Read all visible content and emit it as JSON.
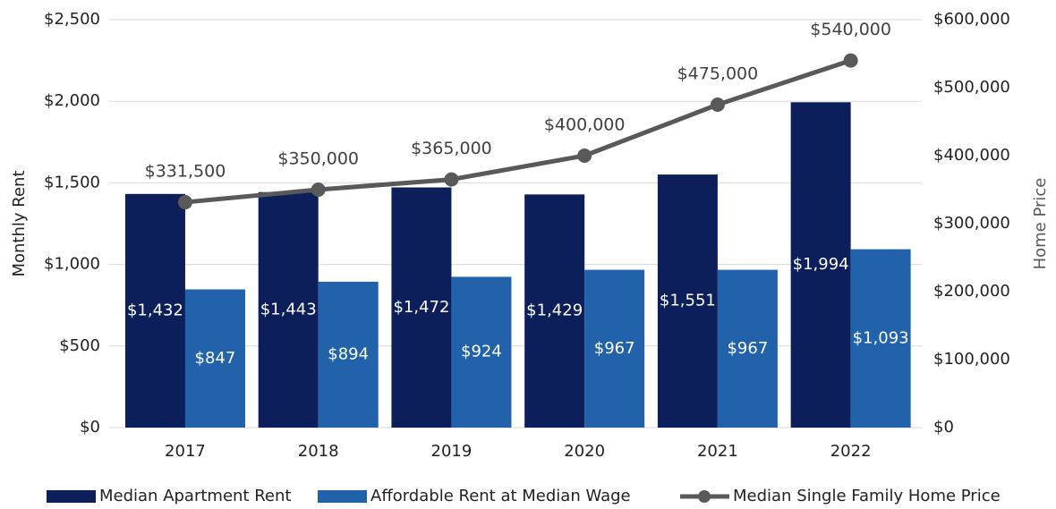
{
  "chart_data": {
    "type": "bar",
    "categories": [
      "2017",
      "2018",
      "2019",
      "2020",
      "2021",
      "2022"
    ],
    "y_label": "Monthly Rent",
    "y2_label": "Home Price",
    "ylim": [
      0,
      2500
    ],
    "yticks": [
      {
        "value": 0,
        "label": "$0"
      },
      {
        "value": 500,
        "label": "$500"
      },
      {
        "value": 1000,
        "label": "$1,000"
      },
      {
        "value": 1500,
        "label": "$1,500"
      },
      {
        "value": 2000,
        "label": "$2,000"
      },
      {
        "value": 2500,
        "label": "$2,500"
      }
    ],
    "y2lim": [
      0,
      600000
    ],
    "y2ticks": [
      {
        "value": 0,
        "label": "$0"
      },
      {
        "value": 100000,
        "label": "$100,000"
      },
      {
        "value": 200000,
        "label": "$200,000"
      },
      {
        "value": 300000,
        "label": "$300,000"
      },
      {
        "value": 400000,
        "label": "$400,000"
      },
      {
        "value": 500000,
        "label": "$500,000"
      },
      {
        "value": 600000,
        "label": "$600,000"
      }
    ],
    "grid": true,
    "legend": "bottom",
    "series": [
      {
        "name": "Median Apartment Rent",
        "type": "bar",
        "color": "#0c1f5b",
        "values": [
          1432,
          1443,
          1472,
          1429,
          1551,
          1994
        ],
        "value_labels": [
          "$1,432",
          "$1,443",
          "$1,472",
          "$1,429",
          "$1,551",
          "$1,994"
        ]
      },
      {
        "name": "Affordable Rent at Median Wage",
        "type": "bar",
        "color": "#2162aa",
        "values": [
          847,
          894,
          924,
          967,
          967,
          1093
        ],
        "value_labels": [
          "$847",
          "$894",
          "$924",
          "$967",
          "$967",
          "$1,093"
        ]
      },
      {
        "name": "Median Single Family Home Price",
        "type": "line",
        "axis": "y2",
        "color": "#595959",
        "values": [
          331500,
          350000,
          365000,
          400000,
          475000,
          540000
        ],
        "value_labels": [
          "$331,500",
          "$350,000",
          "$365,000",
          "$400,000",
          "$475,000",
          "$540,000"
        ]
      }
    ]
  }
}
